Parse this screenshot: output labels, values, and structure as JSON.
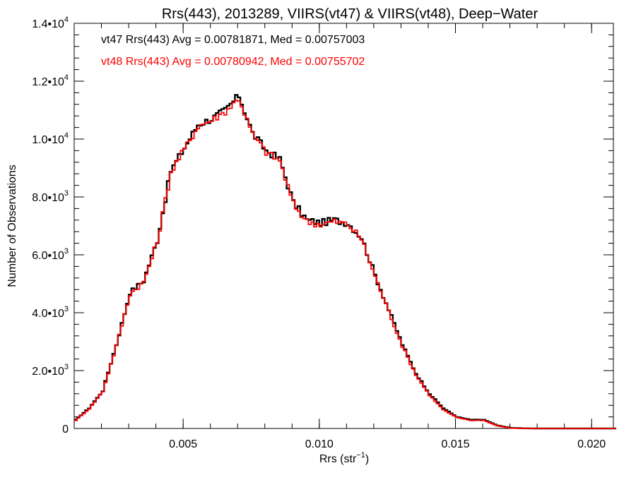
{
  "chart_data": {
    "type": "line",
    "title": "Rrs(443), 2013289, VIIRS(vt47) & VIIRS(vt48), Deep−Water",
    "xlabel": "Rrs (str",
    "xlabel_sup": "−1",
    "xlabel_suffix": ")",
    "ylabel": "Number of Observations",
    "xlim": [
      0.001,
      0.0208
    ],
    "ylim": [
      0,
      14000
    ],
    "grid": false,
    "x_ticks": [
      {
        "value": 0.005,
        "label": "0.005"
      },
      {
        "value": 0.01,
        "label": "0.010"
      },
      {
        "value": 0.015,
        "label": "0.015"
      },
      {
        "value": 0.02,
        "label": "0.020"
      }
    ],
    "y_ticks": [
      {
        "value": 0,
        "mant": "0",
        "exp": ""
      },
      {
        "value": 2000,
        "mant": "2.0•10",
        "exp": "3"
      },
      {
        "value": 4000,
        "mant": "4.0•10",
        "exp": "3"
      },
      {
        "value": 6000,
        "mant": "6.0•10",
        "exp": "3"
      },
      {
        "value": 8000,
        "mant": "8.0•10",
        "exp": "3"
      },
      {
        "value": 10000,
        "mant": "1.0•10",
        "exp": "4"
      },
      {
        "value": 12000,
        "mant": "1.2•10",
        "exp": "4"
      },
      {
        "value": 14000,
        "mant": "1.4•10",
        "exp": "4"
      }
    ],
    "annotations": [
      {
        "text": "vt47 Rrs(443) Avg = 0.00781871, Med = 0.00757003",
        "color": "#000000"
      },
      {
        "text": "vt48 Rrs(443) Avg = 0.00780942, Med = 0.00755702",
        "color": "#ff0000"
      }
    ],
    "x": [
      0.001,
      0.0015,
      0.002,
      0.0025,
      0.003,
      0.0035,
      0.004,
      0.0045,
      0.005,
      0.0055,
      0.006,
      0.0065,
      0.007,
      0.0075,
      0.008,
      0.0085,
      0.009,
      0.0095,
      0.01,
      0.0105,
      0.011,
      0.0115,
      0.012,
      0.0125,
      0.013,
      0.0135,
      0.014,
      0.0145,
      0.015,
      0.0155,
      0.016,
      0.0165,
      0.017,
      0.0175,
      0.018,
      0.019,
      0.02,
      0.0208
    ],
    "series": [
      {
        "name": "vt47",
        "color": "#000000",
        "values": [
          300,
          700,
          1300,
          2900,
          4700,
          5100,
          6500,
          8900,
          9700,
          10500,
          10700,
          11000,
          11500,
          10200,
          9600,
          9300,
          7800,
          7200,
          7100,
          7200,
          7100,
          6600,
          5300,
          4100,
          2900,
          1900,
          1200,
          700,
          400,
          300,
          300,
          100,
          20,
          5,
          0,
          0,
          0,
          0
        ]
      },
      {
        "name": "vt48",
        "color": "#ff0000",
        "values": [
          280,
          680,
          1280,
          2850,
          4650,
          5050,
          6450,
          8850,
          9650,
          10450,
          10650,
          10950,
          11400,
          10150,
          9550,
          9250,
          7750,
          7150,
          7050,
          7150,
          7050,
          6550,
          5250,
          4050,
          2850,
          1850,
          1150,
          650,
          380,
          280,
          280,
          90,
          15,
          4,
          0,
          0,
          0,
          0
        ]
      }
    ]
  }
}
